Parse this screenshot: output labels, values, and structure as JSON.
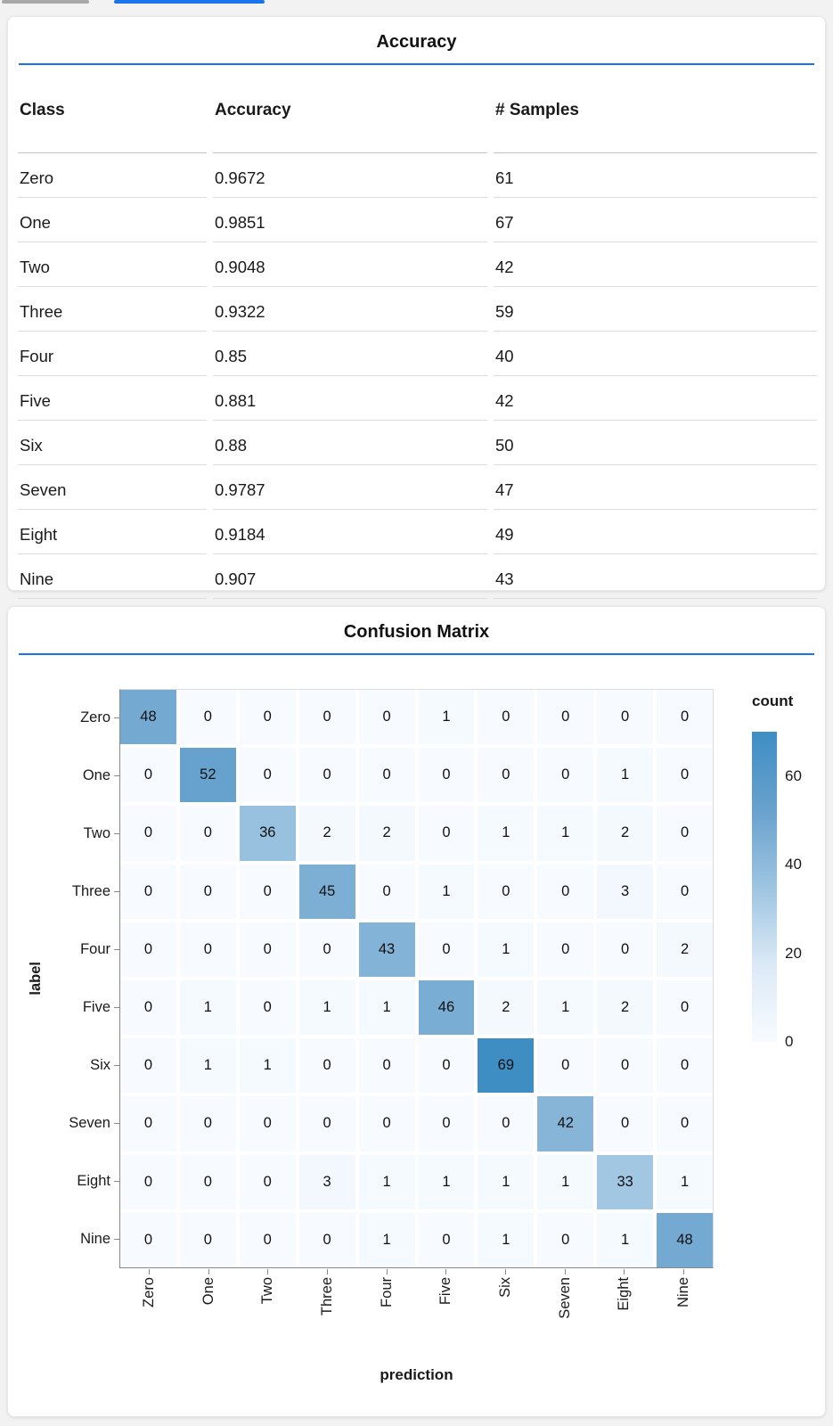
{
  "page": {
    "background": "#f2f2f2",
    "accent_blue": "#1a73e8",
    "tab_indicators": {
      "inactive_color": "#a8a8a8",
      "active_color": "#1a73e8"
    }
  },
  "chart_data": [
    {
      "type": "table",
      "title": "Accuracy",
      "columns": [
        "Class",
        "Accuracy",
        "# Samples"
      ],
      "rows": [
        [
          "Zero",
          "0.9672",
          "61"
        ],
        [
          "One",
          "0.9851",
          "67"
        ],
        [
          "Two",
          "0.9048",
          "42"
        ],
        [
          "Three",
          "0.9322",
          "59"
        ],
        [
          "Four",
          "0.85",
          "40"
        ],
        [
          "Five",
          "0.881",
          "42"
        ],
        [
          "Six",
          "0.88",
          "50"
        ],
        [
          "Seven",
          "0.9787",
          "47"
        ],
        [
          "Eight",
          "0.9184",
          "49"
        ],
        [
          "Nine",
          "0.907",
          "43"
        ]
      ]
    },
    {
      "type": "heatmap",
      "title": "Confusion Matrix",
      "xlabel": "prediction",
      "ylabel": "label",
      "categories": [
        "Zero",
        "One",
        "Two",
        "Three",
        "Four",
        "Five",
        "Six",
        "Seven",
        "Eight",
        "Nine"
      ],
      "matrix": [
        [
          48,
          0,
          0,
          0,
          0,
          1,
          0,
          0,
          0,
          0
        ],
        [
          0,
          52,
          0,
          0,
          0,
          0,
          0,
          0,
          1,
          0
        ],
        [
          0,
          0,
          36,
          2,
          2,
          0,
          1,
          1,
          2,
          0
        ],
        [
          0,
          0,
          0,
          45,
          0,
          1,
          0,
          0,
          3,
          0
        ],
        [
          0,
          0,
          0,
          0,
          43,
          0,
          1,
          0,
          0,
          2
        ],
        [
          0,
          1,
          0,
          1,
          1,
          46,
          2,
          1,
          2,
          0
        ],
        [
          0,
          1,
          1,
          0,
          0,
          0,
          69,
          0,
          0,
          0
        ],
        [
          0,
          0,
          0,
          0,
          0,
          0,
          0,
          42,
          0,
          0
        ],
        [
          0,
          0,
          0,
          3,
          1,
          1,
          1,
          1,
          33,
          1
        ],
        [
          0,
          0,
          0,
          0,
          1,
          0,
          1,
          0,
          1,
          48
        ]
      ],
      "legend": {
        "title": "count",
        "ticks": [
          60,
          40,
          20,
          0
        ],
        "max": 70
      },
      "color_scale": {
        "scheme": "blues",
        "data_max": 69,
        "ramp": [
          [
            0.0,
            "#f7fbff"
          ],
          [
            0.25,
            "#dbe9f6"
          ],
          [
            0.5,
            "#9dc4e1"
          ],
          [
            0.75,
            "#68a1cd"
          ],
          [
            1.0,
            "#3e8ec4"
          ]
        ]
      }
    }
  ]
}
